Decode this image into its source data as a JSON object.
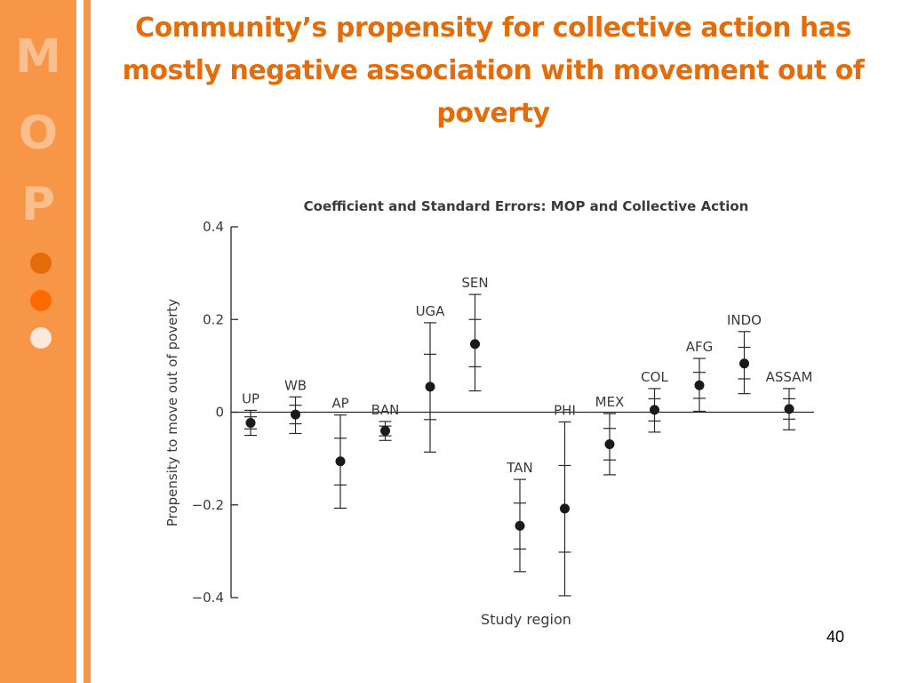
{
  "sidebar": {
    "letters": [
      "M",
      "O",
      "P"
    ],
    "dot_colors": [
      "#e46c0a",
      "#ff6a00",
      "#fde9d9"
    ]
  },
  "slide": {
    "title": "Community’s propensity for collective action has mostly negative association with movement out of poverty",
    "number": "40"
  },
  "colors": {
    "accent": "#e46c0a",
    "sidebar": "#f79646",
    "sidebar_letter": "#fabf8f"
  },
  "chart_data": {
    "type": "scatter",
    "title": "Coefficient and Standard Errors: MOP and Collective Action",
    "xlabel": "Study region",
    "ylabel": "Propensity to move out of poverty",
    "ylim": [
      -0.4,
      0.4
    ],
    "yticks": [
      0.4,
      0.2,
      0,
      -0.2,
      -0.4
    ],
    "ytick_labels": [
      "0.4",
      "0.2",
      "0",
      "−0.2",
      "−0.4"
    ],
    "grid": false,
    "zero_line": true,
    "points": [
      {
        "label": "UP",
        "value": -0.023,
        "se_inner": [
          -0.036,
          -0.01
        ],
        "se_outer": [
          -0.05,
          0.004
        ]
      },
      {
        "label": "WB",
        "value": -0.005,
        "se_inner": [
          -0.025,
          0.015
        ],
        "se_outer": [
          -0.046,
          0.033
        ]
      },
      {
        "label": "AP",
        "value": -0.106,
        "se_inner": [
          -0.157,
          -0.056
        ],
        "se_outer": [
          -0.207,
          -0.006
        ]
      },
      {
        "label": "BAN",
        "value": -0.04,
        "se_inner": [
          -0.051,
          -0.03
        ],
        "se_outer": [
          -0.061,
          -0.02
        ]
      },
      {
        "label": "UGA",
        "value": 0.055,
        "se_inner": [
          -0.016,
          0.125
        ],
        "se_outer": [
          -0.086,
          0.193
        ]
      },
      {
        "label": "SEN",
        "value": 0.147,
        "se_inner": [
          0.098,
          0.2
        ],
        "se_outer": [
          0.046,
          0.254
        ]
      },
      {
        "label": "TAN",
        "value": -0.245,
        "se_inner": [
          -0.295,
          -0.196
        ],
        "se_outer": [
          -0.344,
          -0.145
        ]
      },
      {
        "label": "PHI",
        "value": -0.208,
        "se_inner": [
          -0.302,
          -0.115
        ],
        "se_outer": [
          -0.396,
          -0.021
        ]
      },
      {
        "label": "MEX",
        "value": -0.069,
        "se_inner": [
          -0.103,
          -0.035
        ],
        "se_outer": [
          -0.135,
          -0.003
        ]
      },
      {
        "label": "COL",
        "value": 0.005,
        "se_inner": [
          -0.019,
          0.029
        ],
        "se_outer": [
          -0.043,
          0.051
        ]
      },
      {
        "label": "AFG",
        "value": 0.058,
        "se_inner": [
          0.03,
          0.086
        ],
        "se_outer": [
          0.002,
          0.116
        ]
      },
      {
        "label": "INDO",
        "value": 0.105,
        "se_inner": [
          0.072,
          0.14
        ],
        "se_outer": [
          0.04,
          0.174
        ]
      },
      {
        "label": "ASSAM",
        "value": 0.007,
        "se_inner": [
          -0.015,
          0.029
        ],
        "se_outer": [
          -0.038,
          0.051
        ]
      }
    ]
  }
}
